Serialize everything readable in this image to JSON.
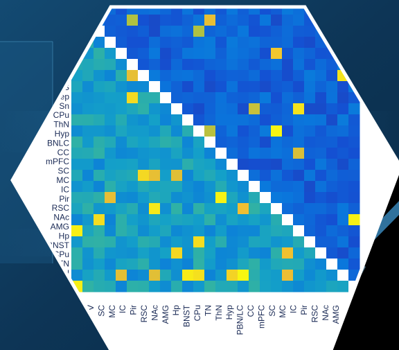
{
  "chart_data": {
    "type": "heatmap",
    "title": "",
    "xlabel": "",
    "ylabel": "",
    "colormap": "parula",
    "value_range": [
      0,
      1
    ],
    "diagonal_color": "#ffffff",
    "row_labels": [
      "S",
      "ep",
      "Sn",
      "CPu",
      "ThN",
      "Hyp",
      "BNLC",
      "CC",
      "mPFC",
      "SC",
      "MC",
      "IC",
      "Pir",
      "RSC",
      "NAc",
      "AMG",
      "Hp",
      "BNST",
      "CPu",
      "TN",
      "N"
    ],
    "col_labels": [
      "V",
      "SC",
      "MC",
      "IC",
      "Pir",
      "RSC",
      "NAc",
      "AMG",
      "Hp",
      "BNST",
      "CPu",
      "TN",
      "ThN",
      "Hyp",
      "PBN/LC",
      "CC",
      "mPFC",
      "SC",
      "MC",
      "IC",
      "Pir",
      "RSC",
      "NAc",
      "AMG"
    ],
    "lower_triangle_typical": 0.45,
    "upper_triangle_typical": 0.22
  },
  "colors": {
    "background_dark": "#0f3a5f",
    "background_light": "#1e6d9a",
    "hex_border": "#ffffff",
    "corner_black": "#000000"
  }
}
